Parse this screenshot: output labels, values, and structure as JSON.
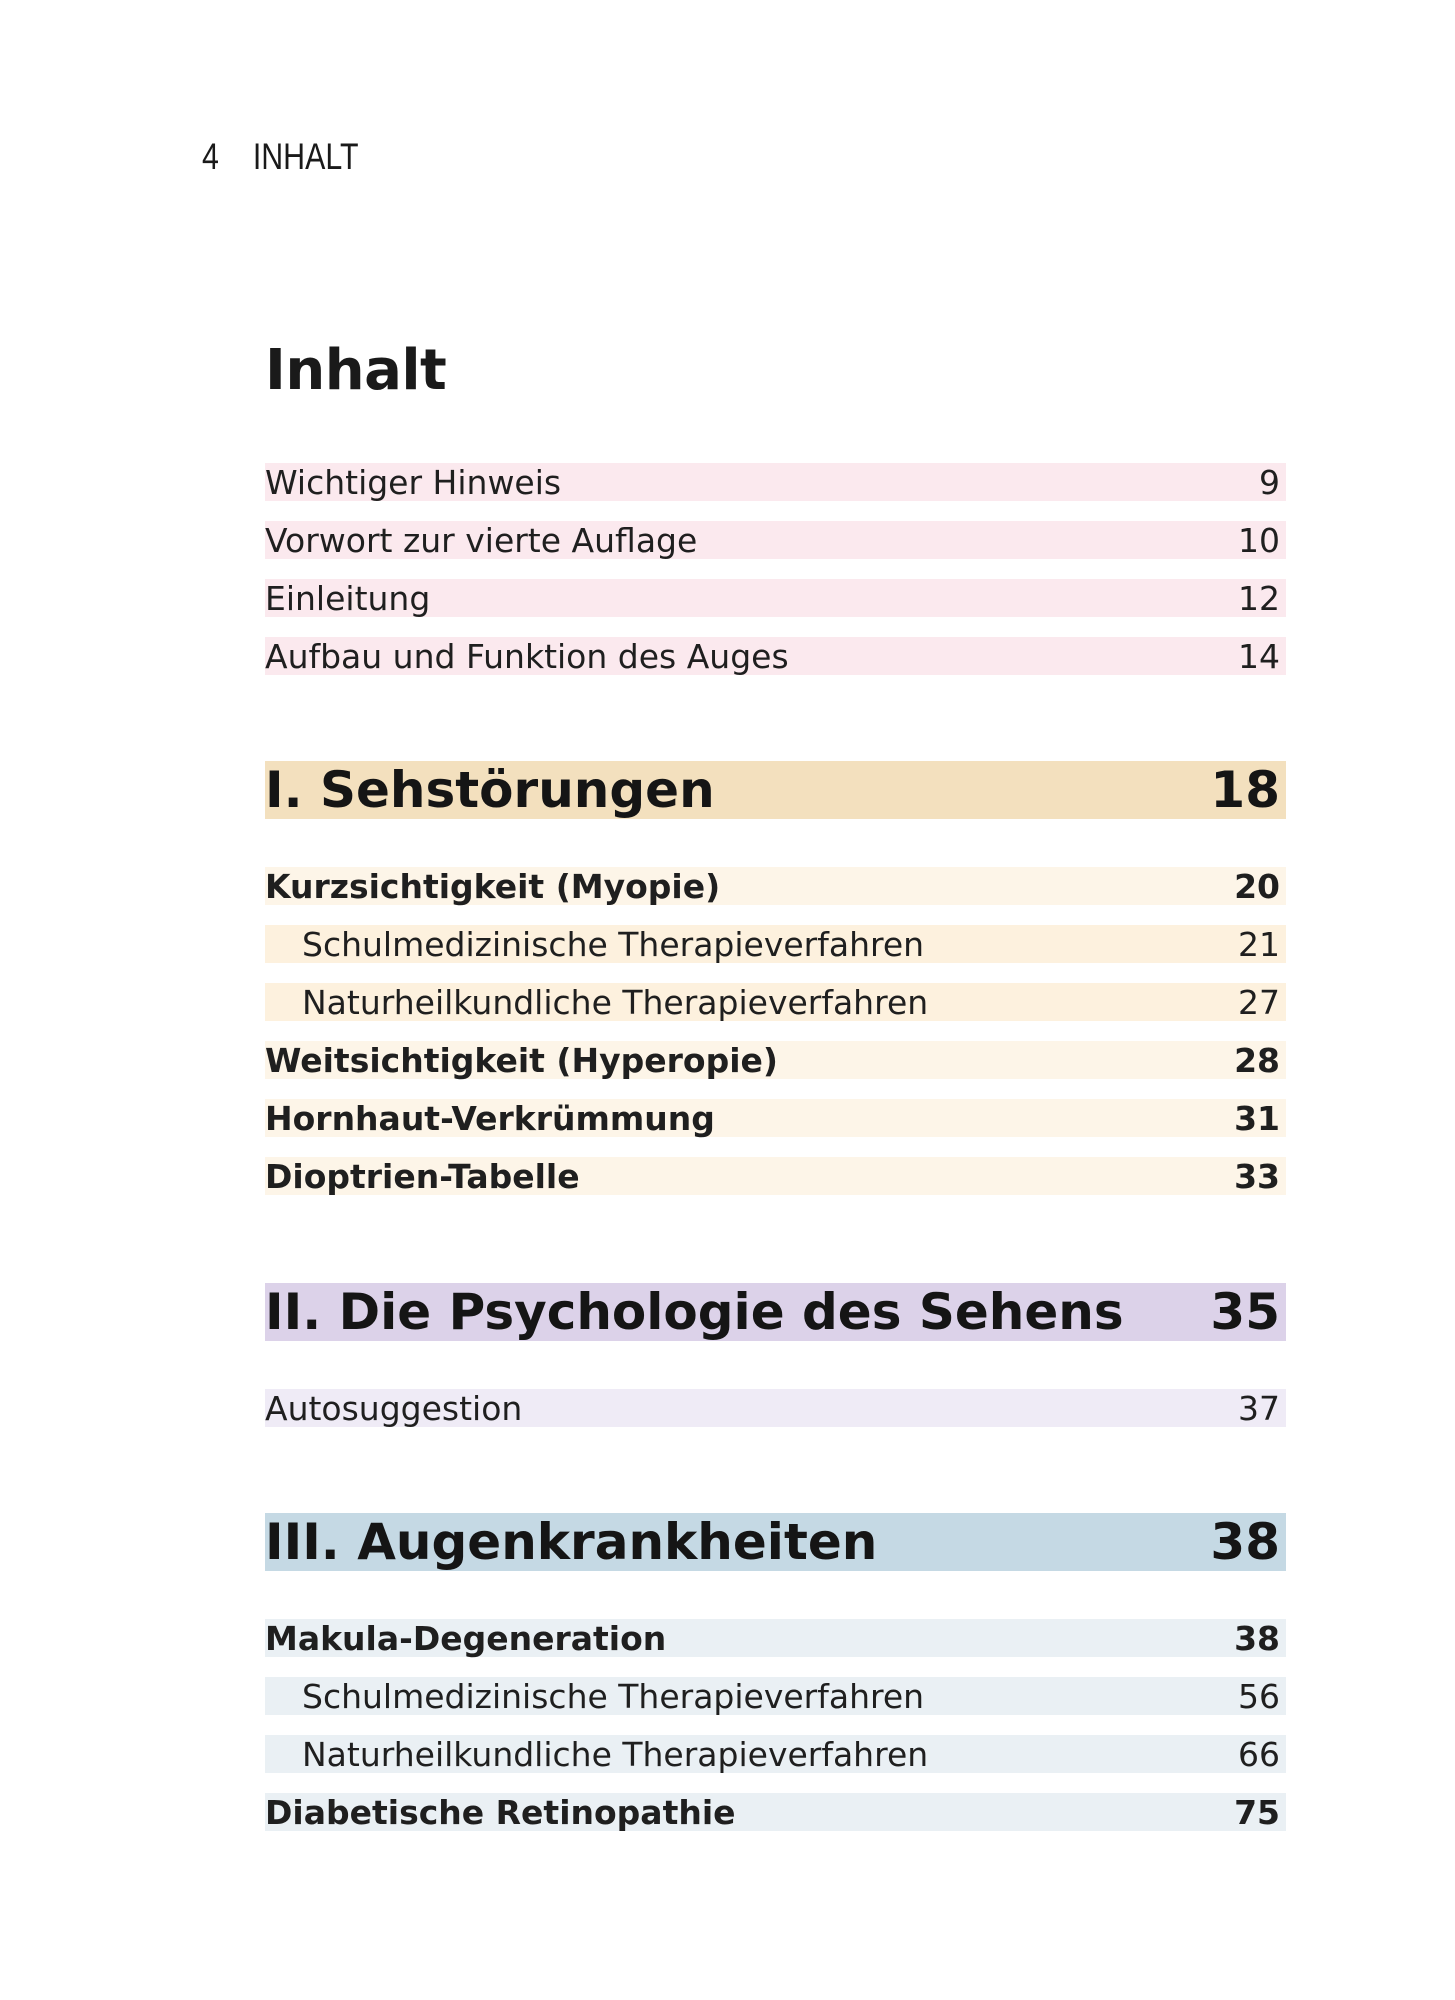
{
  "running_head": {
    "page_number": "4",
    "title": "INHALT"
  },
  "page_title": "Inhalt",
  "intro_entries": [
    {
      "label": "Wichtiger Hinweis",
      "page": "9"
    },
    {
      "label": "Vorwort zur vierte Auflage",
      "page": "10"
    },
    {
      "label": "Einleitung",
      "page": "12"
    },
    {
      "label": "Aufbau und Funktion des Auges",
      "page": "14"
    }
  ],
  "sections": [
    {
      "title": "I. Sehstörungen",
      "page": "18",
      "color": "#f3e0be",
      "entries": [
        {
          "label": "Kurzsichtigkeit (Myopie)",
          "page": "20"
        },
        {
          "label": "Schulmedizinische Therapieverfahren",
          "page": "21"
        },
        {
          "label": "Naturheilkundliche Therapieverfahren",
          "page": "27"
        },
        {
          "label": "Weitsichtigkeit (Hyperopie)",
          "page": "28"
        },
        {
          "label": "Hornhaut-Verkrümmung",
          "page": "31"
        },
        {
          "label": "Dioptrien-Tabelle",
          "page": "33"
        }
      ]
    },
    {
      "title": "II. Die Psychologie des Sehens",
      "page": "35",
      "color": "#dcd2e9",
      "entries": [
        {
          "label": "Autosuggestion",
          "page": "37"
        }
      ]
    },
    {
      "title": "III. Augenkrankheiten",
      "page": "38",
      "color": "#c5d9e4",
      "entries": [
        {
          "label": "Makula-Degeneration",
          "page": "38"
        },
        {
          "label": "Schulmedizinische Therapieverfahren",
          "page": "56"
        },
        {
          "label": "Naturheilkundliche Therapieverfahren",
          "page": "66"
        },
        {
          "label": "Diabetische Retinopathie",
          "page": "75"
        }
      ]
    }
  ]
}
